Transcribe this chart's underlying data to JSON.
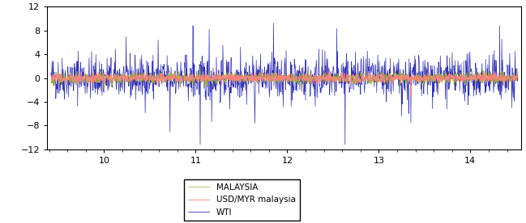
{
  "title": "",
  "xlabel": "",
  "ylabel": "",
  "xlim": [
    9.38,
    14.55
  ],
  "ylim": [
    -12,
    12
  ],
  "xticks": [
    10,
    11,
    12,
    13,
    14
  ],
  "yticks": [
    -12,
    -8,
    -4,
    0,
    4,
    8,
    12
  ],
  "n_points": 1300,
  "x_start": 9.42,
  "x_end": 14.52,
  "legend_labels": [
    "MALAYSIA",
    "USD/MYR malaysia",
    "WTI"
  ],
  "colors": {
    "malaysia": "#9aaa30",
    "usdmyr": "#FF8080",
    "wti": "#3333BB"
  },
  "background_color": "#ffffff",
  "seed": 42
}
